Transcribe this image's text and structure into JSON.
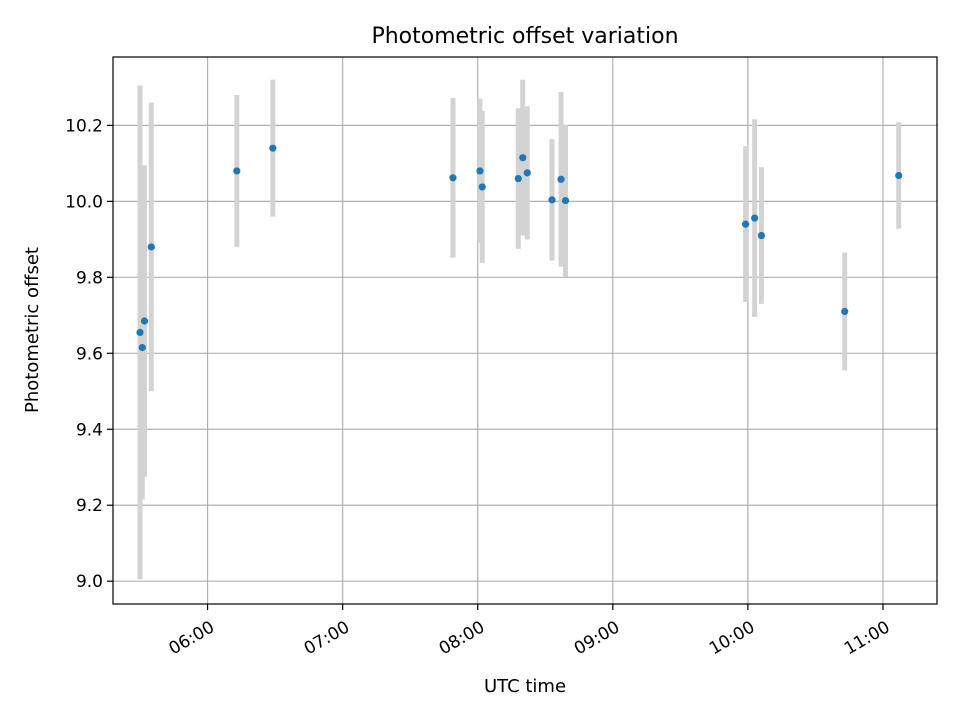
{
  "chart_data": {
    "type": "scatter",
    "title": "Photometric offset variation",
    "xlabel": "UTC time",
    "ylabel": "Photometric offset",
    "x_axis_type": "time",
    "xlim": [
      "05:18",
      "11:24"
    ],
    "ylim": [
      8.94,
      10.38
    ],
    "xticks": [
      "06:00",
      "07:00",
      "08:00",
      "09:00",
      "10:00",
      "11:00"
    ],
    "yticks": [
      "9.0",
      "9.2",
      "9.4",
      "9.6",
      "9.8",
      "10.0",
      "10.2"
    ],
    "grid": true,
    "colors": {
      "point": "#1f77b4",
      "errorbar": "#d3d3d3",
      "grid": "#b0b0b0"
    },
    "points": [
      {
        "time": "05:30",
        "y": 9.655,
        "err": 0.65
      },
      {
        "time": "05:31",
        "y": 9.615,
        "err": 0.4
      },
      {
        "time": "05:32",
        "y": 9.685,
        "err": 0.41
      },
      {
        "time": "05:35",
        "y": 9.88,
        "err": 0.38
      },
      {
        "time": "06:13",
        "y": 10.08,
        "err": 0.2
      },
      {
        "time": "06:29",
        "y": 10.14,
        "err": 0.18
      },
      {
        "time": "07:49",
        "y": 10.062,
        "err": 0.21
      },
      {
        "time": "08:01",
        "y": 10.08,
        "err": 0.19
      },
      {
        "time": "08:02",
        "y": 10.038,
        "err": 0.2
      },
      {
        "time": "08:18",
        "y": 10.06,
        "err": 0.185
      },
      {
        "time": "08:20",
        "y": 10.115,
        "err": 0.205
      },
      {
        "time": "08:22",
        "y": 10.075,
        "err": 0.175
      },
      {
        "time": "08:33",
        "y": 10.004,
        "err": 0.16
      },
      {
        "time": "08:37",
        "y": 10.058,
        "err": 0.23
      },
      {
        "time": "08:39",
        "y": 10.002,
        "err": 0.2
      },
      {
        "time": "09:59",
        "y": 9.94,
        "err": 0.205
      },
      {
        "time": "10:03",
        "y": 9.956,
        "err": 0.26
      },
      {
        "time": "10:06",
        "y": 9.91,
        "err": 0.18
      },
      {
        "time": "10:43",
        "y": 9.71,
        "err": 0.155
      },
      {
        "time": "11:07",
        "y": 10.068,
        "err": 0.14
      }
    ]
  }
}
